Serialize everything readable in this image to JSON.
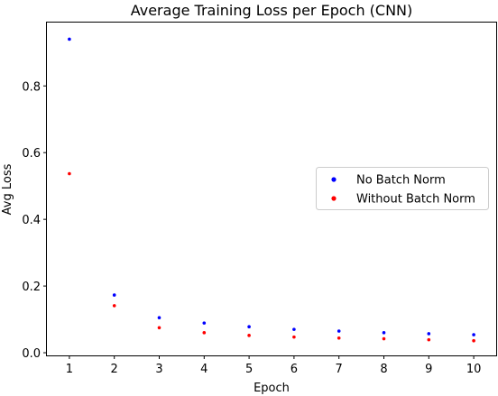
{
  "chart_data": {
    "type": "scatter",
    "title": "Average Training Loss per Epoch (CNN)",
    "xlabel": "Epoch",
    "ylabel": "Avg Loss",
    "x": [
      1,
      2,
      3,
      4,
      5,
      6,
      7,
      8,
      9,
      10
    ],
    "xticks": [
      "1",
      "2",
      "3",
      "4",
      "5",
      "6",
      "7",
      "8",
      "9",
      "10"
    ],
    "yticks": [
      "0.0",
      "0.2",
      "0.4",
      "0.6",
      "0.8"
    ],
    "xlim": [
      0.5,
      10.5
    ],
    "ylim": [
      -0.008,
      0.99
    ],
    "grid": false,
    "legend_position": "center-right",
    "series": [
      {
        "name": "No Batch Norm",
        "color": "#0000ff",
        "values": [
          0.94,
          0.173,
          0.105,
          0.089,
          0.078,
          0.07,
          0.065,
          0.06,
          0.057,
          0.054
        ]
      },
      {
        "name": "Without Batch Norm",
        "color": "#ff0000",
        "values": [
          0.537,
          0.141,
          0.075,
          0.06,
          0.052,
          0.047,
          0.044,
          0.042,
          0.039,
          0.036
        ]
      }
    ]
  }
}
